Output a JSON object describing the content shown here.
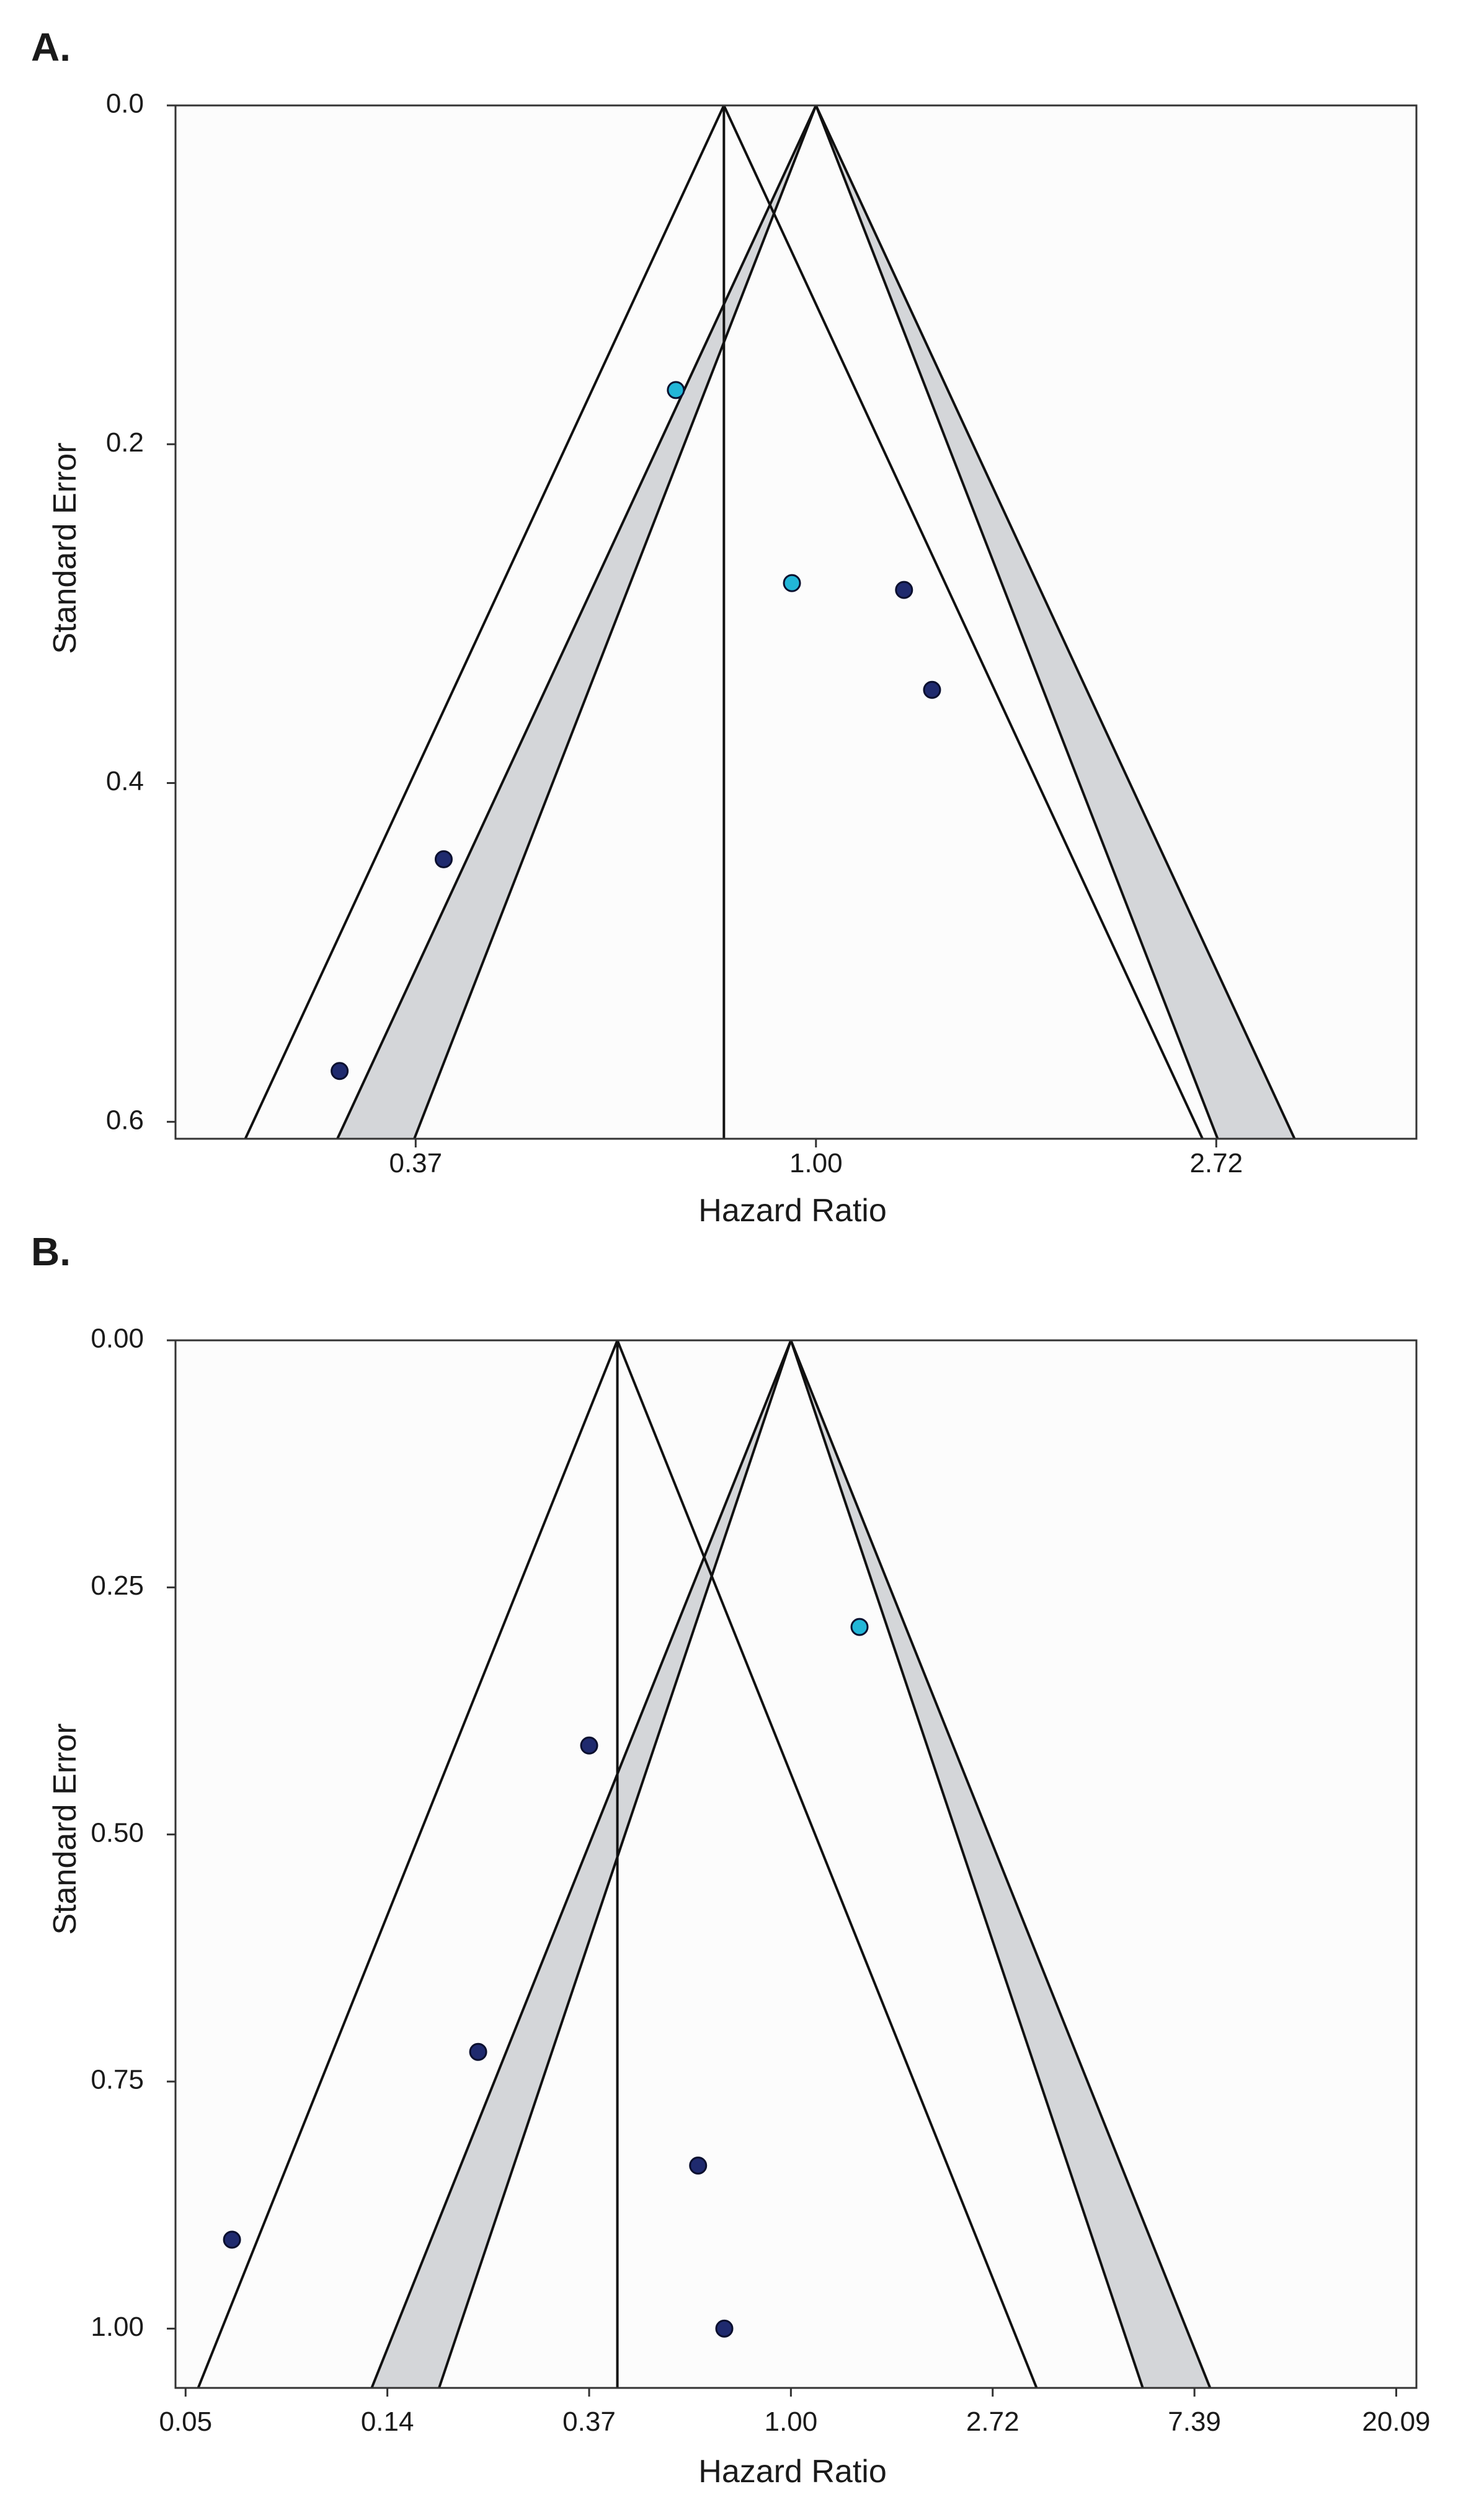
{
  "colors": {
    "background": "#ffffff",
    "plot_background": "#fcfcfc",
    "region_fill": "#d4d6d9",
    "line": "#111111",
    "point_dark": "#1f2a6e",
    "point_light": "#22b6d8",
    "point_stroke": "#0a0f2e"
  },
  "chart_data": [
    {
      "type": "scatter",
      "subtype": "funnel",
      "panel_label": "A.",
      "xlabel": "Hazard Ratio",
      "ylabel": "Standard Error",
      "x_scale": "log",
      "xlim_log": [
        -1.6,
        1.5
      ],
      "ylim": [
        0.0,
        0.61
      ],
      "y_inverted": true,
      "x_ticks": [
        {
          "label": "0.37",
          "log_value": -1
        },
        {
          "label": "1.00",
          "log_value": 0
        },
        {
          "label": "2.72",
          "log_value": 1
        }
      ],
      "y_ticks": [
        {
          "label": "0.0",
          "value": 0.0
        },
        {
          "label": "0.2",
          "value": 0.2
        },
        {
          "label": "0.4",
          "value": 0.4
        },
        {
          "label": "0.6",
          "value": 0.6
        }
      ],
      "pooled_log_hr": -0.23,
      "null_log_hr": 0.0,
      "contour_z": [
        1.645,
        1.96
      ],
      "points": [
        {
          "log_hr": -0.35,
          "se": 0.168,
          "group": "light"
        },
        {
          "log_hr": -0.06,
          "se": 0.282,
          "group": "light"
        },
        {
          "log_hr": 0.22,
          "se": 0.286,
          "group": "dark"
        },
        {
          "log_hr": 0.29,
          "se": 0.345,
          "group": "dark"
        },
        {
          "log_hr": -0.93,
          "se": 0.445,
          "group": "dark"
        },
        {
          "log_hr": -1.19,
          "se": 0.57,
          "group": "dark"
        }
      ]
    },
    {
      "type": "scatter",
      "subtype": "funnel",
      "panel_label": "B.",
      "xlabel": "Hazard Ratio",
      "ylabel": "Standard Error",
      "x_scale": "log",
      "xlim_log": [
        -3.05,
        3.1
      ],
      "ylim": [
        0.0,
        1.06
      ],
      "y_inverted": true,
      "x_ticks": [
        {
          "label": "0.05",
          "log_value": -3
        },
        {
          "label": "0.14",
          "log_value": -2
        },
        {
          "label": "0.37",
          "log_value": -1
        },
        {
          "label": "1.00",
          "log_value": 0
        },
        {
          "label": "2.72",
          "log_value": 1
        },
        {
          "label": "7.39",
          "log_value": 2
        },
        {
          "label": "20.09",
          "log_value": 3
        }
      ],
      "y_ticks": [
        {
          "label": "0.00",
          "value": 0.0
        },
        {
          "label": "0.25",
          "value": 0.25
        },
        {
          "label": "0.50",
          "value": 0.5
        },
        {
          "label": "0.75",
          "value": 0.75
        },
        {
          "label": "1.00",
          "value": 1.0
        }
      ],
      "pooled_log_hr": -0.86,
      "null_log_hr": 0.0,
      "contour_z": [
        1.645,
        1.96
      ],
      "points": [
        {
          "log_hr": 0.34,
          "se": 0.29,
          "group": "light"
        },
        {
          "log_hr": -1.0,
          "se": 0.41,
          "group": "dark"
        },
        {
          "log_hr": -1.55,
          "se": 0.72,
          "group": "dark"
        },
        {
          "log_hr": -0.46,
          "se": 0.835,
          "group": "dark"
        },
        {
          "log_hr": -2.77,
          "se": 0.91,
          "group": "dark"
        },
        {
          "log_hr": -0.33,
          "se": 1.0,
          "group": "dark"
        }
      ]
    }
  ]
}
